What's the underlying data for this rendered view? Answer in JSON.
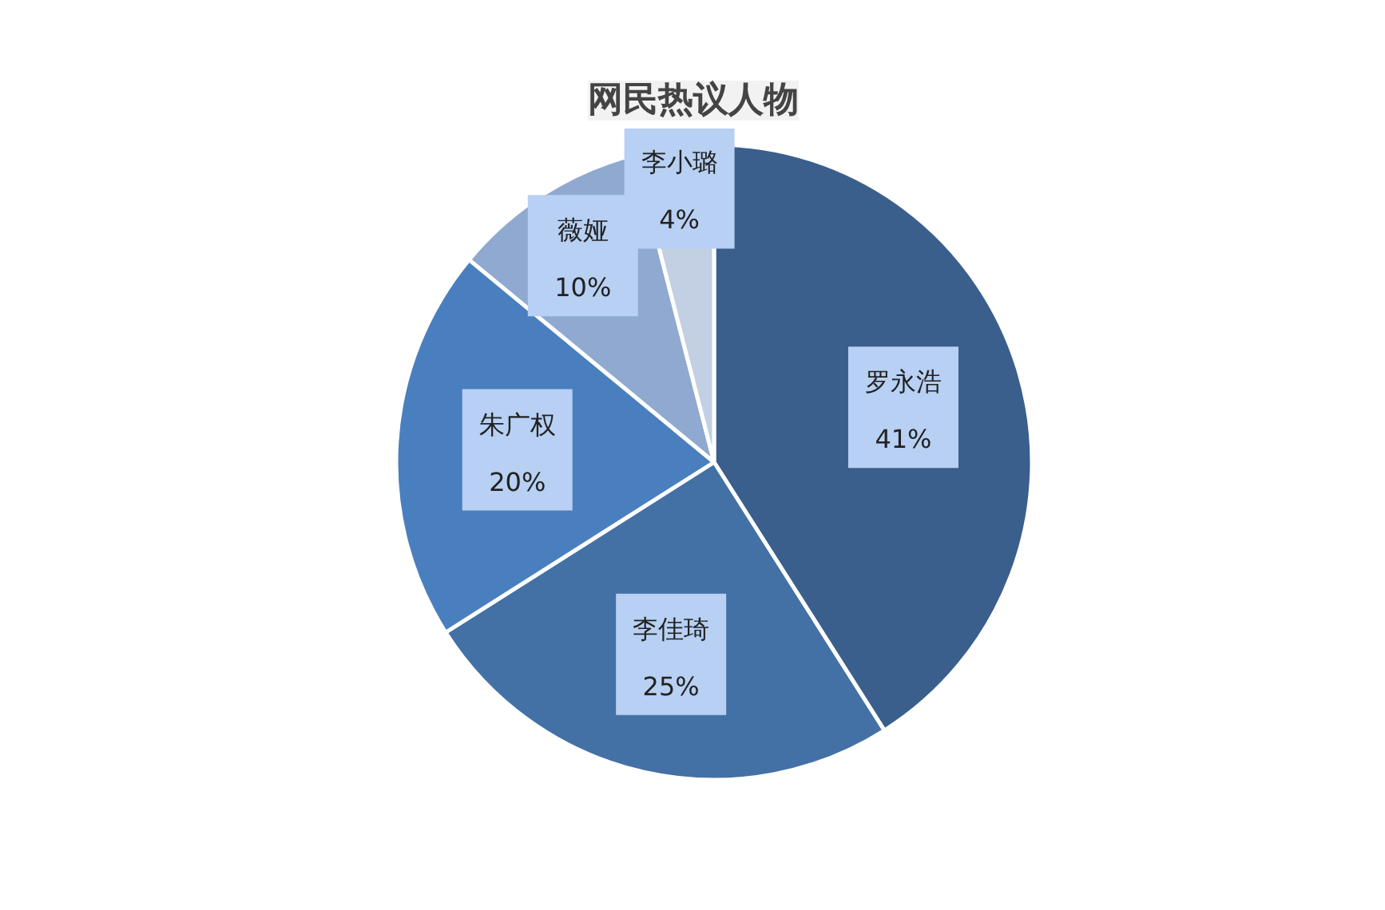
{
  "chart_data": {
    "type": "pie",
    "title": "网民热议人物",
    "categories": [
      "罗永浩",
      "李佳琦",
      "朱广权",
      "薇娅",
      "李小璐"
    ],
    "values": [
      41,
      25,
      20,
      10,
      4
    ],
    "colors": [
      "#3a5f8c",
      "#4371a6",
      "#4a7fbf",
      "#90a9d0",
      "#c3cfe3"
    ],
    "value_labels": [
      "41%",
      "25%",
      "20%",
      "10%",
      "4%"
    ]
  }
}
